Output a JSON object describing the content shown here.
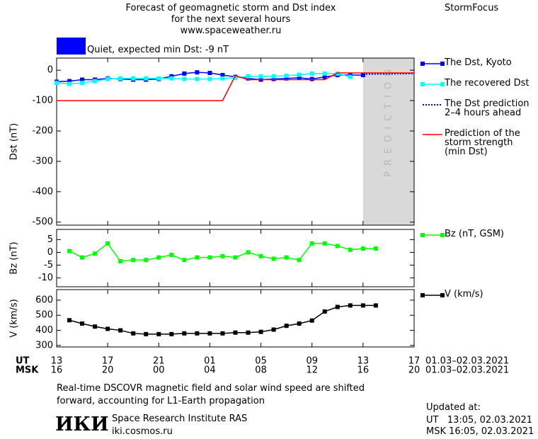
{
  "header": {
    "title": "Forecast of geomagnetic storm and Dst index\nfor the next several hours\nwww.spaceweather.ru",
    "brand": "StormFocus",
    "status": "Quiet, expected min Dst: -9 nT",
    "status_color": "#0000ff"
  },
  "chart_data": [
    {
      "type": "line",
      "ylabel": "Dst (nT)",
      "xlim": [
        0,
        28
      ],
      "ylim": [
        -510,
        40
      ],
      "yticks": [
        0,
        -100,
        -200,
        -300,
        -400,
        -500
      ],
      "prediction": {
        "label": "PREDICTION",
        "span": [
          24,
          28
        ],
        "color": "#d9d9d9"
      },
      "series": [
        {
          "name": "The Dst, Kyoto",
          "color": "#0000ff",
          "marker": "square",
          "style": "solid",
          "x": [
            0,
            1,
            2,
            3,
            4,
            5,
            6,
            7,
            8,
            9,
            10,
            11,
            12,
            13,
            14,
            15,
            16,
            17,
            18,
            19,
            20,
            21,
            22,
            23,
            24
          ],
          "values": [
            -38,
            -36,
            -31,
            -31,
            -27,
            -29,
            -31,
            -31,
            -29,
            -20,
            -11,
            -7,
            -9,
            -16,
            -22,
            -27,
            -31,
            -29,
            -27,
            -25,
            -29,
            -22,
            -16,
            -16,
            -16
          ]
        },
        {
          "name": "The recovered Dst",
          "color": "#00ffff",
          "marker": "square",
          "style": "solid",
          "x": [
            0,
            1,
            2,
            3,
            4,
            5,
            6,
            7,
            8,
            9,
            10,
            11,
            12,
            13,
            14,
            15,
            16,
            17,
            18,
            19,
            20,
            21,
            22,
            23
          ],
          "values": [
            -42,
            -45,
            -42,
            -36,
            -29,
            -27,
            -27,
            -27,
            -27,
            -27,
            -29,
            -29,
            -29,
            -27,
            -25,
            -20,
            -20,
            -20,
            -18,
            -15,
            -11,
            -11,
            -11,
            -22
          ]
        },
        {
          "name": "The Dst prediction\n2–4 hours ahead",
          "color": "#0000ff",
          "marker": "none",
          "style": "dotted",
          "x": [
            24,
            28
          ],
          "values": [
            -13,
            -11
          ]
        },
        {
          "name": "Prediction of the\nstorm strength\n(min Dst)",
          "color": "#ff0000",
          "marker": "none",
          "style": "solid",
          "x": [
            0,
            13,
            14,
            15,
            21,
            22,
            28
          ],
          "values": [
            -100,
            -100,
            -18,
            -31,
            -31,
            -9,
            -9
          ]
        }
      ]
    },
    {
      "type": "line",
      "ylabel": "Bz (nT)",
      "xlim": [
        0,
        28
      ],
      "ylim": [
        -13.5,
        9
      ],
      "yticks": [
        5,
        0,
        -5,
        -10
      ],
      "series": [
        {
          "name": "Bz (nT, GSM)",
          "color": "#00ff00",
          "marker": "square",
          "style": "solid",
          "x": [
            1,
            2,
            3,
            4,
            5,
            6,
            7,
            8,
            9,
            10,
            11,
            12,
            13,
            14,
            15,
            16,
            17,
            18,
            19,
            20,
            21,
            22,
            23,
            24,
            25
          ],
          "values": [
            0.5,
            -2,
            -0.5,
            3.5,
            -3.5,
            -3,
            -3,
            -2,
            -1,
            -3,
            -2,
            -2,
            -1.5,
            -2,
            0,
            -1.5,
            -2.5,
            -2,
            -3,
            3.5,
            3.5,
            2.5,
            1,
            1.5,
            1.5
          ]
        }
      ]
    },
    {
      "type": "line",
      "ylabel": "V (km/s)",
      "xlim": [
        0,
        28
      ],
      "ylim": [
        290,
        670
      ],
      "yticks": [
        300,
        400,
        500,
        600
      ],
      "xlabel": "UT",
      "x2label": "MSK",
      "date_range": "01.03–02.03.2021",
      "xticks": [
        {
          "value": 0,
          "label": "13"
        },
        {
          "value": 4,
          "label": "17"
        },
        {
          "value": 8,
          "label": "21"
        },
        {
          "value": 12,
          "label": "01"
        },
        {
          "value": 16,
          "label": "05"
        },
        {
          "value": 20,
          "label": "09"
        },
        {
          "value": 24,
          "label": "13"
        },
        {
          "value": 28,
          "label": "17"
        }
      ],
      "x2ticks": [
        {
          "value": 0,
          "label": "16"
        },
        {
          "value": 4,
          "label": "20"
        },
        {
          "value": 8,
          "label": "00"
        },
        {
          "value": 12,
          "label": "04"
        },
        {
          "value": 16,
          "label": "08"
        },
        {
          "value": 20,
          "label": "12"
        },
        {
          "value": 24,
          "label": "16"
        },
        {
          "value": 28,
          "label": "20"
        }
      ],
      "series": [
        {
          "name": "V (km/s)",
          "color": "#000000",
          "marker": "square",
          "style": "solid",
          "x": [
            1,
            2,
            3,
            4,
            5,
            6,
            7,
            8,
            9,
            10,
            11,
            12,
            13,
            14,
            15,
            16,
            17,
            18,
            19,
            20,
            21,
            22,
            23,
            24,
            25
          ],
          "values": [
            467,
            445,
            425,
            410,
            400,
            380,
            375,
            375,
            375,
            380,
            380,
            380,
            380,
            385,
            385,
            390,
            405,
            430,
            445,
            465,
            525,
            555,
            565,
            565,
            565
          ]
        }
      ]
    }
  ],
  "footer": {
    "note": "Real-time DSCOVR magnetic field and solar wind speed are shifted\nforward, accounting for L1-Earth propagation",
    "logo": "ИКИ",
    "institute": "Space Research Institute RAS",
    "site": "iki.cosmos.ru",
    "updated_label": "Updated at:",
    "updated_ut": "UT   13:05, 02.03.2021",
    "updated_msk": "MSK 16:05, 02.03.2021"
  }
}
